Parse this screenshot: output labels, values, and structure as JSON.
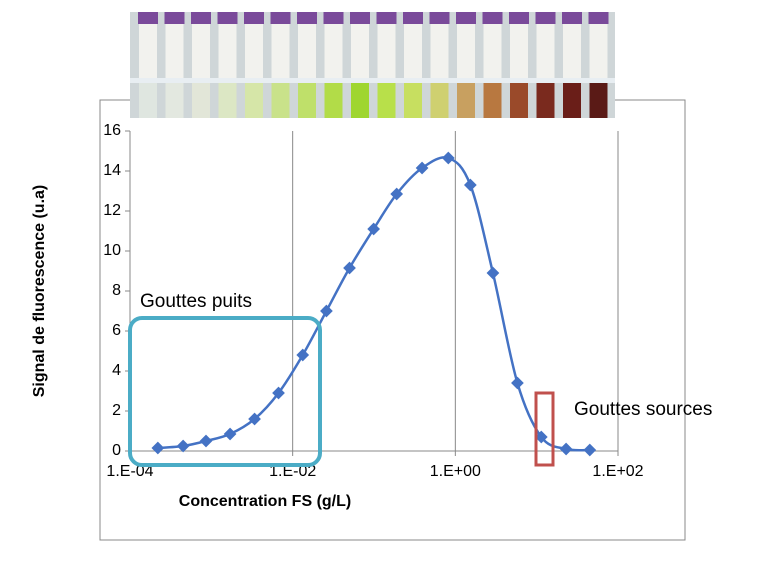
{
  "chart_data": {
    "type": "line",
    "xlabel": "Concentration FS (g/L)",
    "ylabel": "Signal de fluorescence (u.a)",
    "xscale": "log",
    "x": [
      0.00022,
      0.00045,
      0.00086,
      0.0017,
      0.0034,
      0.0067,
      0.0133,
      0.026,
      0.05,
      0.099,
      0.19,
      0.39,
      0.82,
      1.53,
      2.9,
      5.8,
      11.4,
      23,
      45
    ],
    "series": [
      {
        "name": "Signal",
        "color": "#4472c4",
        "values": [
          0.15,
          0.25,
          0.5,
          0.85,
          1.6,
          2.9,
          4.8,
          7.0,
          9.15,
          11.1,
          12.85,
          14.15,
          14.65,
          13.3,
          8.9,
          3.4,
          0.7,
          0.1,
          0.05
        ]
      }
    ],
    "xlim": [
      0.0001,
      100
    ],
    "ylim": [
      0,
      16
    ],
    "xticks": [
      {
        "value": 0.0001,
        "label": "1.E-04"
      },
      {
        "value": 0.01,
        "label": "1.E-02"
      },
      {
        "value": 1,
        "label": "1.E+00"
      },
      {
        "value": 100,
        "label": "1.E+02"
      }
    ],
    "yticks": [
      0,
      2,
      4,
      6,
      8,
      10,
      12,
      14,
      16
    ],
    "grid_x": true,
    "annotations": [
      {
        "text": "Gouttes puits",
        "color": "#31a9d4"
      },
      {
        "text": "Gouttes sources",
        "color": "#c0392b"
      }
    ]
  }
}
